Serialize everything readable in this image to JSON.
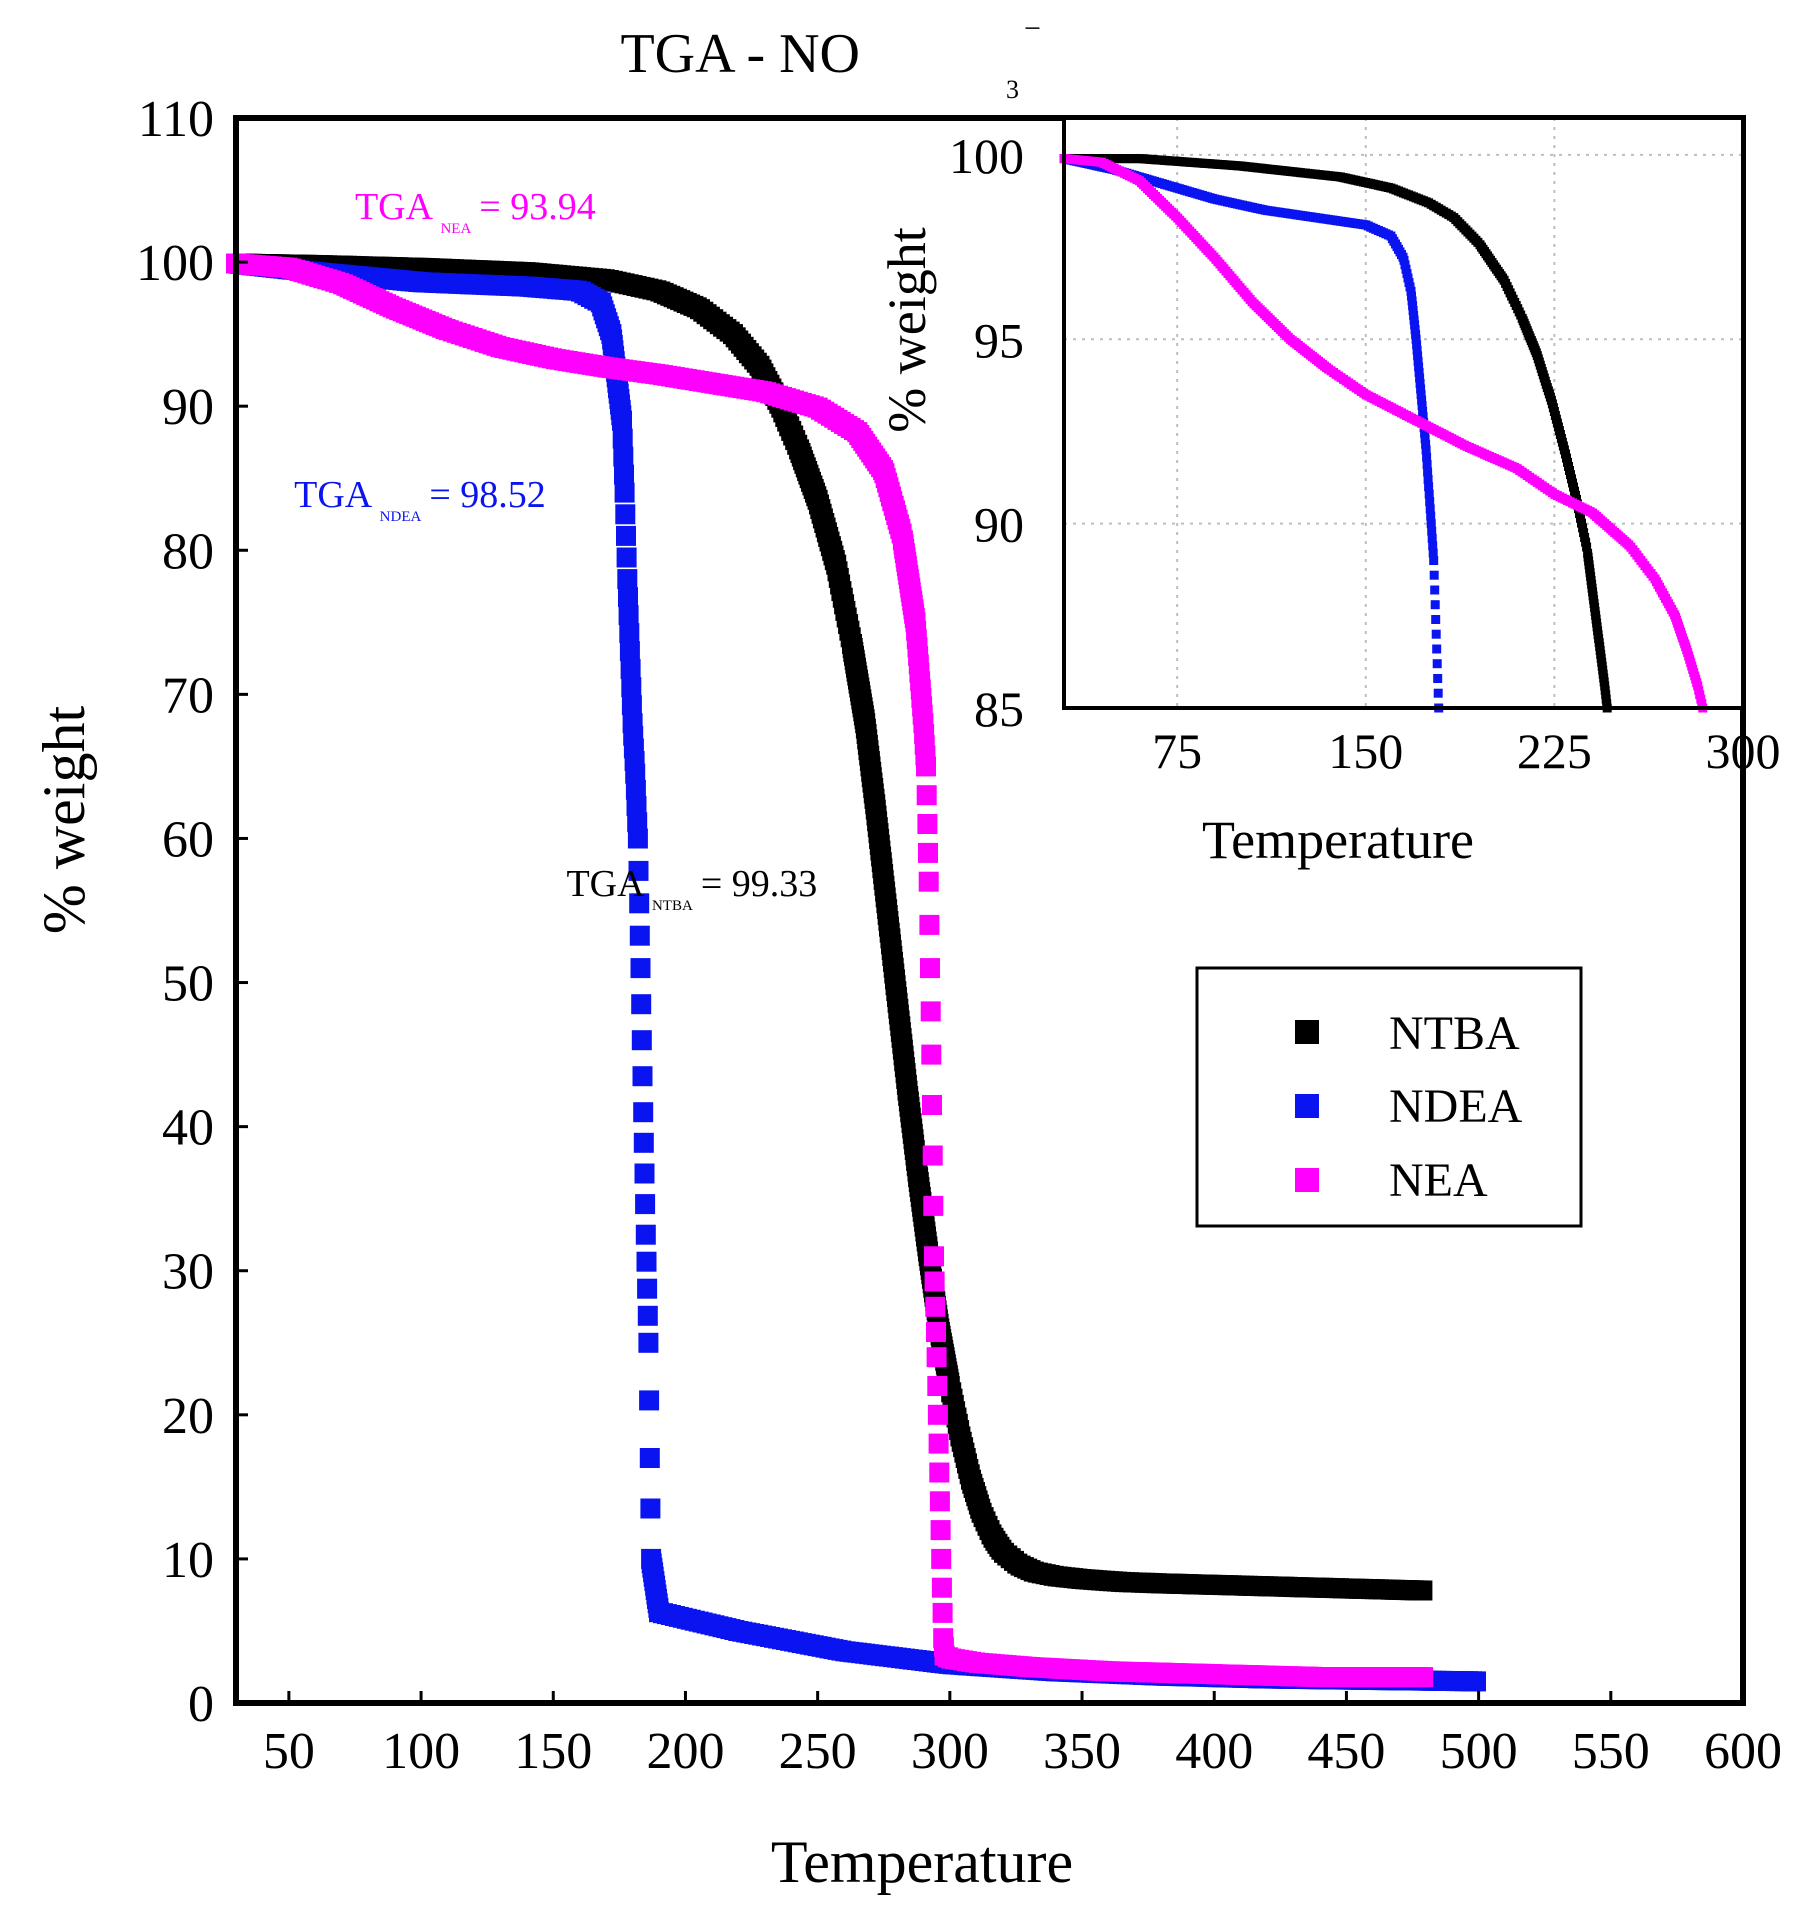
{
  "figure": {
    "title": "TGA - NO",
    "title_subscript": "3",
    "title_superscript": "−"
  },
  "chart_data": [
    {
      "type": "scatter",
      "panel": "main",
      "title": "TGA - NO3−",
      "xlabel": "Temperature",
      "ylabel": "% weight",
      "xlim": [
        30,
        600
      ],
      "ylim": [
        0,
        110
      ],
      "xticks": [
        "50",
        "100",
        "150",
        "200",
        "250",
        "300",
        "350",
        "400",
        "450",
        "500",
        "550",
        "600"
      ],
      "yticks": [
        "0",
        "10",
        "20",
        "30",
        "40",
        "50",
        "60",
        "70",
        "80",
        "90",
        "100",
        "110"
      ],
      "grid": false,
      "legend_position": "center-right",
      "series": [
        {
          "name": "NTBA",
          "color": "#000000",
          "x": [
            30,
            60,
            100,
            140,
            170,
            190,
            205,
            218,
            228,
            236,
            243,
            250,
            257,
            263,
            268,
            272,
            276,
            280,
            284,
            288,
            292,
            296,
            300,
            304,
            308,
            312,
            316,
            320,
            326,
            332,
            340,
            350,
            365,
            380,
            400,
            420,
            440,
            460,
            480
          ],
          "y": [
            99.9,
            99.8,
            99.6,
            99.3,
            98.8,
            98.0,
            96.8,
            95.0,
            92.8,
            90.0,
            87.0,
            83.5,
            79.0,
            73.5,
            68.0,
            62.0,
            55.5,
            49.0,
            42.5,
            36.5,
            31.0,
            26.0,
            22.0,
            18.5,
            15.5,
            13.2,
            11.6,
            10.5,
            9.6,
            9.1,
            8.8,
            8.6,
            8.4,
            8.3,
            8.2,
            8.1,
            8.0,
            7.9,
            7.8
          ]
        },
        {
          "name": "NDEA",
          "color": "#0a14f0",
          "x": [
            30,
            60,
            100,
            140,
            160,
            168,
            172,
            174,
            176,
            177,
            178,
            179,
            180,
            181,
            182,
            183,
            184,
            185,
            186,
            186.5,
            187,
            190,
            220,
            260,
            300,
            340,
            380,
            420,
            460,
            500
          ],
          "y": [
            99.9,
            99.3,
            98.6,
            98.3,
            98.0,
            97.2,
            95.0,
            92.0,
            89.0,
            84.0,
            78.0,
            73.0,
            68.0,
            64.5,
            60.0,
            51.0,
            41.0,
            32.5,
            25.0,
            17.0,
            10.0,
            6.3,
            5.0,
            3.6,
            2.7,
            2.2,
            1.9,
            1.7,
            1.6,
            1.5
          ]
        },
        {
          "name": "NEA",
          "color": "#ff00ff",
          "x": [
            30,
            50,
            70,
            90,
            110,
            130,
            150,
            170,
            190,
            210,
            230,
            250,
            265,
            275,
            282,
            287,
            290,
            291,
            292,
            293,
            294,
            295,
            296,
            297,
            297.5,
            298,
            300,
            310,
            330,
            360,
            400,
            440,
            480
          ],
          "y": [
            99.9,
            99.6,
            98.5,
            96.8,
            95.3,
            94.1,
            93.3,
            92.7,
            92.2,
            91.6,
            91.0,
            89.9,
            88.2,
            85.5,
            81.0,
            75.0,
            68.0,
            65.0,
            57.0,
            45.0,
            31.0,
            24.0,
            16.0,
            8.0,
            4.5,
            3.3,
            3.1,
            2.8,
            2.5,
            2.2,
            2.0,
            1.8,
            1.8
          ]
        }
      ],
      "annotations": [
        {
          "label": "TGA",
          "subscript": "NEA",
          "value": "= 93.94",
          "color": "#ff00ff",
          "at": [
            75,
            103
          ]
        },
        {
          "label": "TGA",
          "subscript": "NDEA",
          "value": "= 98.52",
          "color": "#0a14f0",
          "at": [
            52,
            83
          ]
        },
        {
          "label": "TGA",
          "subscript": "NTBA",
          "value": "= 99.33",
          "color": "#000000",
          "at": [
            155,
            56
          ]
        }
      ]
    },
    {
      "type": "scatter",
      "panel": "inset",
      "xlabel": "Temperature",
      "ylabel": "% weight",
      "xlim": [
        30,
        300
      ],
      "ylim": [
        85,
        101
      ],
      "xticks": [
        "75",
        "150",
        "225",
        "300"
      ],
      "yticks": [
        "85",
        "90",
        "95",
        "100"
      ],
      "grid": true,
      "series": [
        {
          "name": "NTBA",
          "color": "#000000",
          "x": [
            30,
            60,
            100,
            140,
            160,
            175,
            185,
            195,
            205,
            212,
            218,
            224,
            229,
            234,
            238,
            242,
            245,
            246
          ],
          "y": [
            99.9,
            99.9,
            99.7,
            99.4,
            99.1,
            98.7,
            98.3,
            97.6,
            96.6,
            95.6,
            94.6,
            93.3,
            92.0,
            90.6,
            89.3,
            87.2,
            85.6,
            85.0
          ]
        },
        {
          "name": "NDEA",
          "color": "#0a14f0",
          "x": [
            30,
            50,
            70,
            90,
            110,
            130,
            150,
            160,
            165,
            168,
            170,
            172,
            174,
            175,
            176,
            177,
            177.5,
            178,
            178.5,
            179
          ],
          "y": [
            99.9,
            99.6,
            99.2,
            98.8,
            98.5,
            98.3,
            98.1,
            97.8,
            97.2,
            96.3,
            95.0,
            93.5,
            92.0,
            91.0,
            90.0,
            89.0,
            88.0,
            87.0,
            86.0,
            85.0
          ]
        },
        {
          "name": "NEA",
          "color": "#ff00ff",
          "x": [
            30,
            45,
            60,
            75,
            90,
            105,
            120,
            135,
            150,
            170,
            190,
            210,
            225,
            240,
            255,
            265,
            273,
            278,
            282,
            284
          ],
          "y": [
            99.9,
            99.8,
            99.3,
            98.3,
            97.2,
            96.0,
            95.0,
            94.2,
            93.5,
            92.8,
            92.1,
            91.5,
            90.8,
            90.3,
            89.4,
            88.5,
            87.5,
            86.5,
            85.6,
            85.0
          ]
        }
      ]
    }
  ]
}
